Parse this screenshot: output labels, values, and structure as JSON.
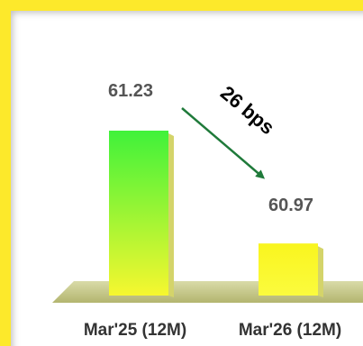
{
  "chart_data": {
    "type": "bar",
    "categories": [
      "Mar'25 (12M)",
      "Mar'26 (12M)"
    ],
    "values": [
      61.23,
      60.97
    ],
    "value_labels": [
      "61.23",
      "60.97"
    ],
    "annotation": "26 bps",
    "bar_colors": [
      {
        "top": "#3ff23a",
        "bottom": "#f6f72f"
      },
      {
        "top": "#f9f51e",
        "bottom": "#fbfb3e"
      }
    ],
    "floor_color": "#c7c98a",
    "arrow_color": "#1f7a3a",
    "border_color": "#fde92b"
  }
}
